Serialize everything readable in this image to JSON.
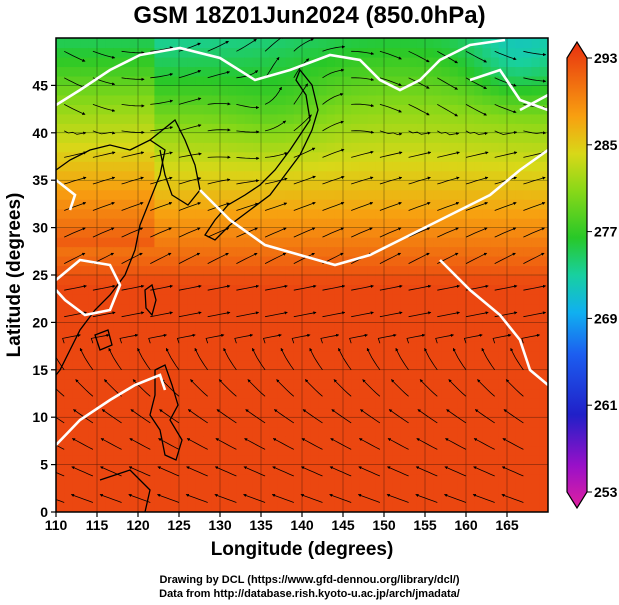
{
  "title": "GSM 18Z01Jun2024 (850.0hPa)",
  "x_axis": {
    "label": "Longitude (degrees)",
    "min": 110,
    "max": 170,
    "ticks": [
      "110",
      "115",
      "120",
      "125",
      "130",
      "135",
      "140",
      "145",
      "150",
      "155",
      "160",
      "165"
    ]
  },
  "y_axis": {
    "label": "Latitude  (degrees)",
    "min": 0,
    "max": 50,
    "ticks": [
      "0",
      "5",
      "10",
      "15",
      "20",
      "25",
      "30",
      "35",
      "40",
      "45"
    ]
  },
  "colorbar": {
    "min": 253,
    "max": 293,
    "labels": [
      "293",
      "285",
      "277",
      "269",
      "261",
      "253"
    ],
    "colors": [
      "#e020a0",
      "#9a10c8",
      "#2020c8",
      "#1c5ef0",
      "#10b0f0",
      "#18d0a0",
      "#28c828",
      "#88d818",
      "#d8d818",
      "#f8a010",
      "#f06810",
      "#e83010"
    ]
  },
  "credits": {
    "line1": "Drawing by DCL (https://www.gfd-dennou.org/library/dcl/)",
    "line2": "Data from http://database.rish.kyoto-u.ac.jp/arch/jmadata/"
  },
  "layers": [
    "temperature-shading",
    "coastlines",
    "grid",
    "streamlines",
    "white-contours"
  ]
}
